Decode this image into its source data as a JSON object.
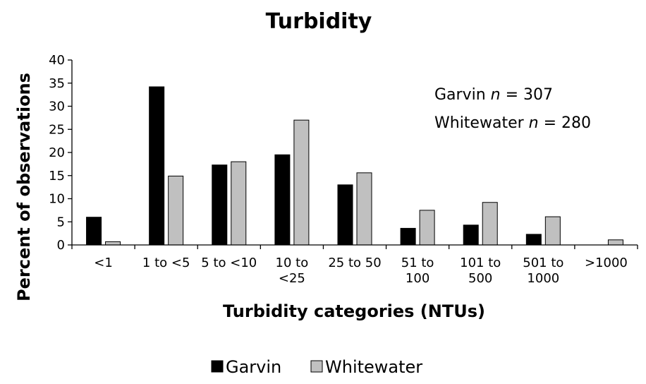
{
  "chart_data": {
    "type": "bar",
    "title": "Turbidity",
    "xlabel": "Turbidity categories (NTUs)",
    "ylabel": "Percent of observations",
    "ylim": [
      0,
      40
    ],
    "yticks": [
      0,
      5,
      10,
      15,
      20,
      25,
      30,
      35,
      40
    ],
    "grid": false,
    "legend_position": "bottom",
    "categories": [
      [
        "<1"
      ],
      [
        "1 to <5"
      ],
      [
        "5 to <10"
      ],
      [
        "10 to",
        "<25"
      ],
      [
        "25 to 50"
      ],
      [
        "51 to",
        "100"
      ],
      [
        "101 to",
        "500"
      ],
      [
        "501 to",
        "1000"
      ],
      [
        ">1000"
      ]
    ],
    "series": [
      {
        "name": "Garvin",
        "color": "#000000",
        "values": [
          6.0,
          34.2,
          17.3,
          19.5,
          13.0,
          3.6,
          4.3,
          2.3,
          0.0
        ]
      },
      {
        "name": "Whitewater",
        "color": "#c0c0c0",
        "values": [
          0.7,
          14.9,
          18.0,
          27.0,
          15.6,
          7.5,
          9.2,
          6.1,
          1.1
        ]
      }
    ],
    "annotations": [
      {
        "label": "Garvin ",
        "var": "n",
        "value": " = 307"
      },
      {
        "label": "Whitewater ",
        "var": "n",
        "value": " = 280"
      }
    ]
  }
}
